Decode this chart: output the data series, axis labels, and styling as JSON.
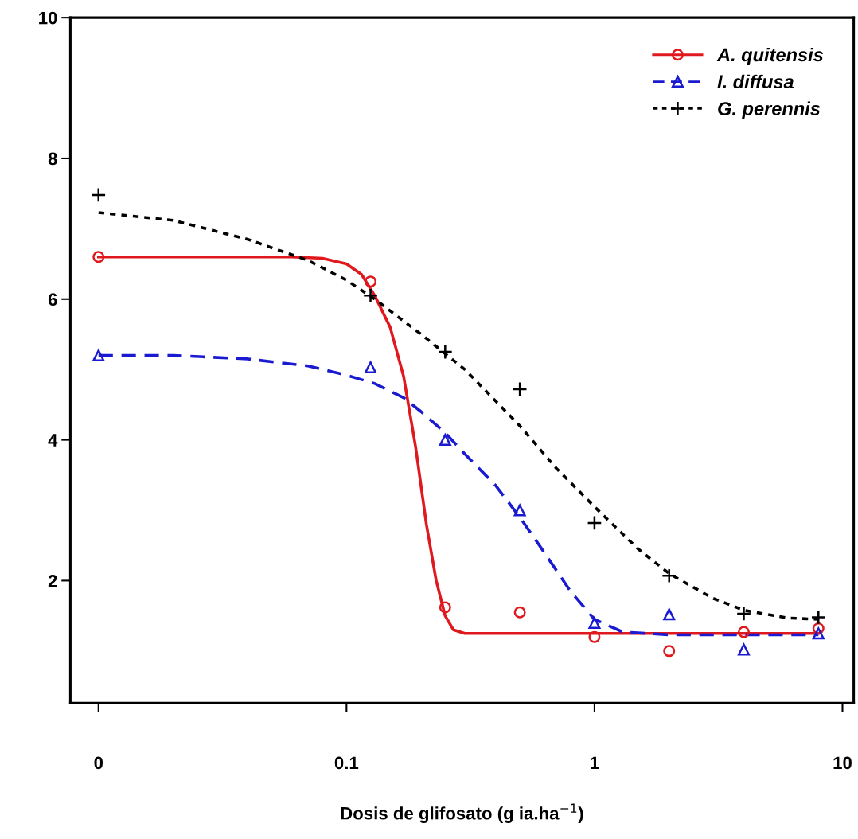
{
  "chart_data": {
    "type": "scatter",
    "xlabel": "Dosis de glifosato (g ia.ha$^{−1}$)",
    "log": "x",
    "xlim": [
      0.0077,
      11.1
    ],
    "xticks": [
      {
        "value": 0.01,
        "label": "0"
      },
      0.1,
      1,
      10
    ],
    "ylim": [
      0.26,
      10
    ],
    "yticks": [
      2,
      4,
      6,
      8,
      10
    ],
    "grid": false,
    "legend": "top right",
    "series": [
      {
        "name": "A. quitensis",
        "color": "#e0191f",
        "marker": "circle",
        "line_style": "solid",
        "x": [
          0.01,
          0.125,
          0.25,
          0.5,
          1,
          2,
          4,
          8
        ],
        "values": [
          6.6,
          6.25,
          1.62,
          1.55,
          1.2,
          1.0,
          1.27,
          1.32
        ]
      },
      {
        "name": "I. diffusa",
        "color": "#1a1ad0",
        "marker": "triangle",
        "line_style": "dashed",
        "x": [
          0.01,
          0.125,
          0.25,
          0.5,
          1,
          2,
          4,
          8
        ],
        "values": [
          5.2,
          5.03,
          4.0,
          3.0,
          1.4,
          1.52,
          1.02,
          1.25
        ]
      },
      {
        "name": "G. perennis",
        "color": "#000000",
        "marker": "cross",
        "line_style": "dotted",
        "x": [
          0.01,
          0.125,
          0.25,
          0.5,
          1,
          2,
          4,
          8
        ],
        "values": [
          7.48,
          6.05,
          5.25,
          4.72,
          2.82,
          2.07,
          1.53,
          1.48
        ]
      },
      {
        "type": "line",
        "color": "#e0191f",
        "line_style": "solid",
        "x": [
          0.01,
          0.03,
          0.06,
          0.08,
          0.1,
          0.115,
          0.13,
          0.15,
          0.17,
          0.19,
          0.21,
          0.23,
          0.25,
          0.27,
          0.3,
          0.4,
          1,
          8
        ],
        "values": [
          6.6,
          6.6,
          6.6,
          6.58,
          6.5,
          6.35,
          6.05,
          5.6,
          4.9,
          3.9,
          2.8,
          2.0,
          1.5,
          1.3,
          1.25,
          1.25,
          1.25,
          1.25
        ]
      },
      {
        "type": "line",
        "color": "#1a1ad0",
        "line_style": "dashed",
        "x": [
          0.01,
          0.02,
          0.04,
          0.07,
          0.1,
          0.13,
          0.17,
          0.2,
          0.25,
          0.3,
          0.4,
          0.5,
          0.6,
          0.8,
          1,
          1.3,
          2,
          8
        ],
        "values": [
          5.2,
          5.2,
          5.15,
          5.05,
          4.92,
          4.8,
          4.6,
          4.4,
          4.1,
          3.8,
          3.35,
          2.9,
          2.5,
          1.85,
          1.45,
          1.27,
          1.23,
          1.23
        ]
      },
      {
        "type": "line",
        "color": "#000000",
        "line_style": "dotted",
        "x": [
          0.01,
          0.02,
          0.04,
          0.07,
          0.1,
          0.13,
          0.2,
          0.3,
          0.5,
          0.7,
          1,
          1.5,
          2,
          3,
          4,
          6,
          8
        ],
        "values": [
          7.23,
          7.12,
          6.85,
          6.55,
          6.27,
          6.0,
          5.5,
          5.0,
          4.2,
          3.6,
          3.05,
          2.45,
          2.1,
          1.75,
          1.58,
          1.47,
          1.45
        ]
      }
    ]
  }
}
